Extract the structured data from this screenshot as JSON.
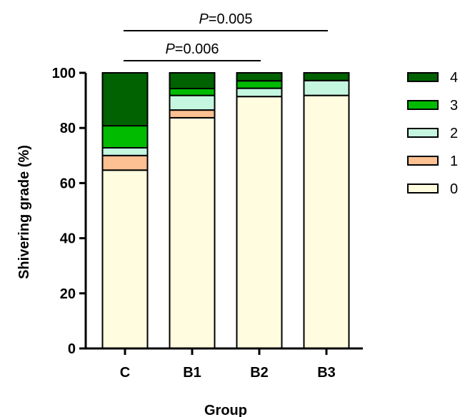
{
  "chart_data": {
    "type": "bar",
    "stacked": true,
    "categories": [
      "C",
      "B1",
      "B2",
      "B3"
    ],
    "series": [
      {
        "name": "0",
        "values": [
          64.7,
          83.7,
          91.4,
          91.8
        ],
        "color": "#FFFCE0"
      },
      {
        "name": "1",
        "values": [
          5.3,
          2.8,
          0,
          0
        ],
        "color": "#FCC092"
      },
      {
        "name": "2",
        "values": [
          2.8,
          5.3,
          3.0,
          5.4
        ],
        "color": "#C5F7E0"
      },
      {
        "name": "3",
        "values": [
          8.0,
          2.5,
          2.7,
          0
        ],
        "color": "#00BB00"
      },
      {
        "name": "4",
        "values": [
          19.2,
          5.7,
          2.9,
          2.8
        ],
        "color": "#006200"
      }
    ],
    "xlabel": "Group",
    "ylabel": "Shivering grade (%)",
    "ylim": [
      0,
      100
    ],
    "yticks": [
      "0",
      "20",
      "40",
      "60",
      "80",
      "100"
    ],
    "legend_order": [
      "4",
      "3",
      "2",
      "1",
      "0"
    ],
    "legend_position": "right",
    "grid": false,
    "significance": [
      {
        "italic": "P",
        "text": "=0.005",
        "from": "C",
        "to": "B3"
      },
      {
        "italic": "P",
        "text": "=0.006",
        "from": "C",
        "to": "B2"
      }
    ]
  }
}
